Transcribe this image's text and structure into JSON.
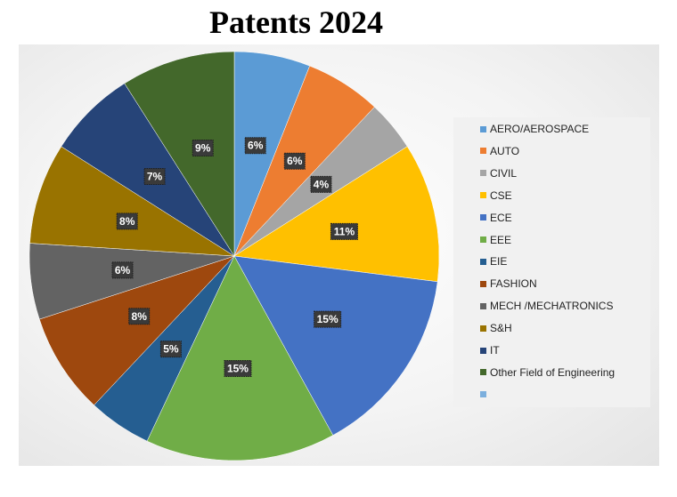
{
  "chart_data": {
    "type": "pie",
    "title": "Patents 2024",
    "slices": [
      {
        "name": "AERO/AEROSPACE",
        "value": 6,
        "label": "6%",
        "color": "#5b9bd5"
      },
      {
        "name": "AUTO",
        "value": 6,
        "label": "6%",
        "color": "#ed7d31"
      },
      {
        "name": "CIVIL",
        "value": 4,
        "label": "4%",
        "color": "#a5a5a5"
      },
      {
        "name": "CSE",
        "value": 11,
        "label": "11%",
        "color": "#ffc000"
      },
      {
        "name": "ECE",
        "value": 15,
        "label": "15%",
        "color": "#4472c4"
      },
      {
        "name": "EEE",
        "value": 15,
        "label": "15%",
        "color": "#70ad47"
      },
      {
        "name": "EIE",
        "value": 5,
        "label": "5%",
        "color": "#255e91"
      },
      {
        "name": "FASHION",
        "value": 8,
        "label": "8%",
        "color": "#9e480e"
      },
      {
        "name": "MECH /MECHATRONICS",
        "value": 6,
        "label": "6%",
        "color": "#636363"
      },
      {
        "name": "S&H",
        "value": 8,
        "label": "8%",
        "color": "#997300"
      },
      {
        "name": "IT",
        "value": 7,
        "label": "7%",
        "color": "#264478"
      },
      {
        "name": "Other Field of Engineering",
        "value": 9,
        "label": "9%",
        "color": "#43682b"
      }
    ],
    "legend_extra": {
      "name": "",
      "color": "#7cafdd"
    },
    "legend_position": "right"
  }
}
